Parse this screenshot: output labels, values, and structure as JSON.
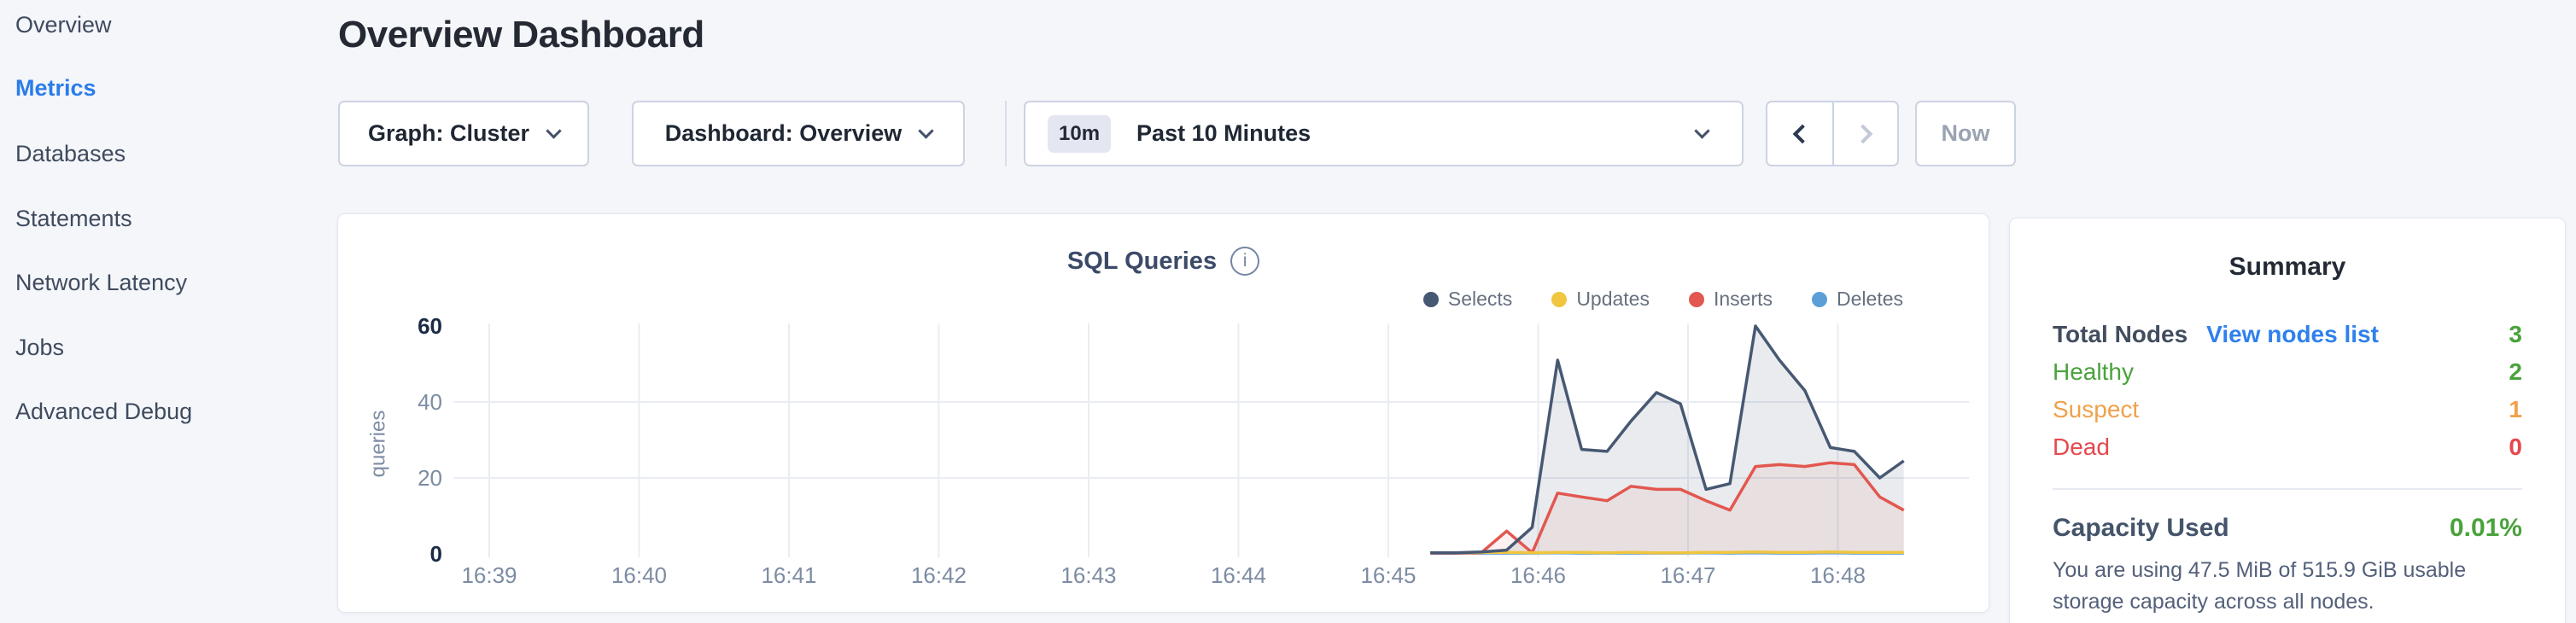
{
  "sidebar": {
    "items": [
      {
        "label": "Overview",
        "active": false
      },
      {
        "label": "Metrics",
        "active": true
      },
      {
        "label": "Databases",
        "active": false
      },
      {
        "label": "Statements",
        "active": false
      },
      {
        "label": "Network Latency",
        "active": false
      },
      {
        "label": "Jobs",
        "active": false
      },
      {
        "label": "Advanced Debug",
        "active": false
      }
    ]
  },
  "header": {
    "title": "Overview Dashboard"
  },
  "controls": {
    "graph_dropdown": "Graph: Cluster",
    "dashboard_dropdown": "Dashboard: Overview",
    "time_badge": "10m",
    "time_label": "Past 10 Minutes",
    "now_label": "Now",
    "icons": {
      "graph_chevron": "chevron-down-icon",
      "dashboard_chevron": "chevron-down-icon",
      "time_chevron": "chevron-down-icon",
      "prev": "chevron-left-icon",
      "next": "chevron-right-icon"
    }
  },
  "chart_data": {
    "type": "line",
    "title": "SQL Queries",
    "ylabel": "queries",
    "x_ticks": [
      "16:39",
      "16:40",
      "16:41",
      "16:42",
      "16:43",
      "16:44",
      "16:45",
      "16:46",
      "16:47",
      "16:48"
    ],
    "y_ticks": [
      {
        "value": 60,
        "emph": true
      },
      {
        "value": 40,
        "emph": false
      },
      {
        "value": 20,
        "emph": false
      },
      {
        "value": 0,
        "emph": true
      }
    ],
    "y_gridlines": [
      20,
      40
    ],
    "ylim": [
      0,
      60
    ],
    "grid": true,
    "legend_position": "top-right",
    "x_unit_minutes_from": "16:39",
    "series": [
      {
        "name": "Selects",
        "color": "#475872",
        "fill": true,
        "fill_opacity": 0.12,
        "points": [
          [
            6.28,
            0.3
          ],
          [
            6.45,
            0.3
          ],
          [
            6.62,
            0.5
          ],
          [
            6.79,
            1
          ],
          [
            6.96,
            7
          ],
          [
            7.13,
            51
          ],
          [
            7.29,
            27.5
          ],
          [
            7.46,
            27
          ],
          [
            7.62,
            35
          ],
          [
            7.79,
            42.5
          ],
          [
            7.95,
            39.5
          ],
          [
            8.12,
            17
          ],
          [
            8.28,
            18.5
          ],
          [
            8.45,
            60
          ],
          [
            8.61,
            51
          ],
          [
            8.78,
            43
          ],
          [
            8.95,
            28
          ],
          [
            9.11,
            27
          ],
          [
            9.28,
            20
          ],
          [
            9.44,
            24.5
          ]
        ]
      },
      {
        "name": "Updates",
        "color": "#f0c53f",
        "fill": false,
        "fill_opacity": 0,
        "points": [
          [
            6.28,
            0.3
          ],
          [
            6.45,
            0.3
          ],
          [
            6.62,
            0.4
          ],
          [
            6.79,
            0.4
          ],
          [
            6.96,
            0.3
          ],
          [
            7.13,
            0.4
          ],
          [
            7.29,
            0.4
          ],
          [
            7.46,
            0.3
          ],
          [
            7.62,
            0.4
          ],
          [
            7.79,
            0.3
          ],
          [
            7.95,
            0.3
          ],
          [
            8.12,
            0.4
          ],
          [
            8.28,
            0.4
          ],
          [
            8.45,
            0.5
          ],
          [
            8.61,
            0.4
          ],
          [
            8.78,
            0.4
          ],
          [
            8.95,
            0.5
          ],
          [
            9.11,
            0.4
          ],
          [
            9.28,
            0.4
          ],
          [
            9.44,
            0.4
          ]
        ]
      },
      {
        "name": "Inserts",
        "color": "#e2574f",
        "fill": true,
        "fill_opacity": 0.08,
        "points": [
          [
            6.28,
            0.2
          ],
          [
            6.45,
            0.2
          ],
          [
            6.62,
            0.3
          ],
          [
            6.79,
            6
          ],
          [
            6.96,
            0.3
          ],
          [
            7.13,
            16
          ],
          [
            7.29,
            15
          ],
          [
            7.46,
            14
          ],
          [
            7.62,
            17.8
          ],
          [
            7.79,
            17
          ],
          [
            7.95,
            17
          ],
          [
            8.12,
            14
          ],
          [
            8.28,
            11.5
          ],
          [
            8.45,
            23
          ],
          [
            8.61,
            23.5
          ],
          [
            8.78,
            23
          ],
          [
            8.95,
            24
          ],
          [
            9.11,
            23.5
          ],
          [
            9.28,
            15
          ],
          [
            9.44,
            11.5
          ]
        ]
      },
      {
        "name": "Deletes",
        "color": "#5b9fd6",
        "fill": false,
        "fill_opacity": 0,
        "points": [
          [
            6.28,
            0.2
          ],
          [
            6.45,
            0.2
          ],
          [
            6.62,
            0.2
          ],
          [
            6.79,
            0.2
          ],
          [
            6.96,
            0.2
          ],
          [
            7.13,
            0.3
          ],
          [
            7.29,
            0.2
          ],
          [
            7.46,
            0.2
          ],
          [
            7.62,
            0.2
          ],
          [
            7.79,
            0.2
          ],
          [
            7.95,
            0.2
          ],
          [
            8.12,
            0.3
          ],
          [
            8.28,
            0.2
          ],
          [
            8.45,
            0.3
          ],
          [
            8.61,
            0.2
          ],
          [
            8.78,
            0.2
          ],
          [
            8.95,
            0.3
          ],
          [
            9.11,
            0.2
          ],
          [
            9.28,
            0.2
          ],
          [
            9.44,
            0.2
          ]
        ]
      }
    ]
  },
  "summary": {
    "title": "Summary",
    "total_nodes": {
      "label": "Total Nodes",
      "link": "View nodes list",
      "value": "3",
      "value_color": "#4aa23c"
    },
    "rows": [
      {
        "label": "Healthy",
        "value": "2",
        "color": "#4aa23c"
      },
      {
        "label": "Suspect",
        "value": "1",
        "color": "#f0a14b"
      },
      {
        "label": "Dead",
        "value": "0",
        "color": "#e5484d"
      }
    ],
    "capacity": {
      "label": "Capacity Used",
      "value": "0.01%",
      "value_color": "#4aa23c",
      "description": "You are using 47.5 MiB of 515.9 GiB usable storage capacity across all nodes."
    }
  },
  "colors": {
    "page_bg": "#f4f6fa",
    "card_bg": "#ffffff",
    "accent_blue": "#2b7ce9",
    "link_blue": "#2f80ed",
    "green": "#4aa23c",
    "orange": "#f0a14b",
    "red": "#e5484d",
    "grid": "#e9ecf3",
    "axis_text": "#7d8ca3",
    "axis_emph": "#1c2b46"
  }
}
